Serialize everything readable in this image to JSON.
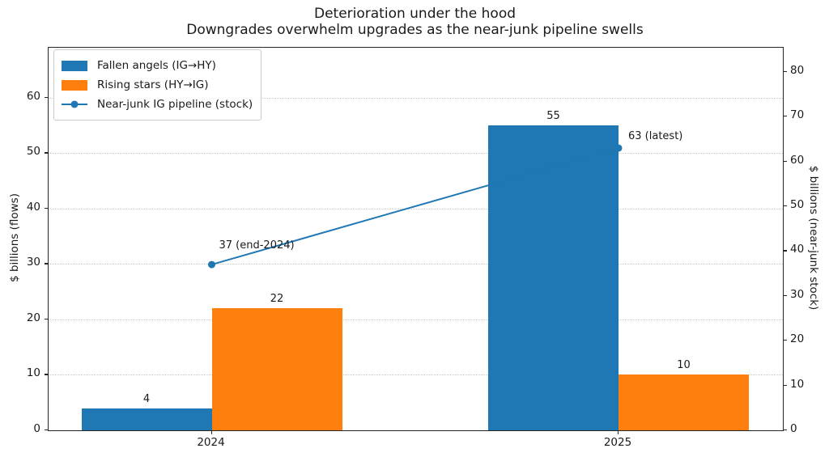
{
  "chart_data": {
    "type": "bar",
    "title": "Deterioration under the hood",
    "subtitle": "Downgrades overwhelm upgrades as the near-junk pipeline swells",
    "categories": [
      "2024",
      "2025"
    ],
    "series": [
      {
        "name": "Fallen angels (IG→HY)",
        "type": "bar",
        "axis": "left",
        "color": "#1f77b4",
        "values": [
          4,
          55
        ]
      },
      {
        "name": "Rising stars (HY→IG)",
        "type": "bar",
        "axis": "left",
        "color": "#ff7f0e",
        "values": [
          22,
          10
        ]
      },
      {
        "name": "Near-junk IG pipeline (stock)",
        "type": "line",
        "axis": "right",
        "color": "#1f77b4",
        "values": [
          37,
          63
        ],
        "point_annotations": [
          "37 (end-2024)",
          "63 (latest)"
        ]
      }
    ],
    "left_axis": {
      "label": "$ billions (flows)",
      "ticks": [
        0,
        10,
        20,
        30,
        40,
        50,
        60
      ],
      "min": 0,
      "max": 69.05
    },
    "right_axis": {
      "label": "$ billions (near-junk stock)",
      "ticks": [
        0,
        10,
        20,
        30,
        40,
        50,
        60,
        70,
        80
      ],
      "min": 0,
      "max": 85.4
    },
    "x_axis": {
      "tick_labels": [
        "2024",
        "2025"
      ]
    },
    "legend": {
      "position": "upper left"
    },
    "grid": {
      "axis": "y",
      "linestyle": "dotted",
      "color": "#c9c9c9"
    }
  },
  "colors": {
    "fallen_angels": "#1f77b4",
    "rising_stars": "#ff7f0e",
    "line": "#1f77b4",
    "spine": "#262626",
    "grid": "#c9c9c9",
    "text": "#1a1a1a",
    "background": "#ffffff"
  }
}
